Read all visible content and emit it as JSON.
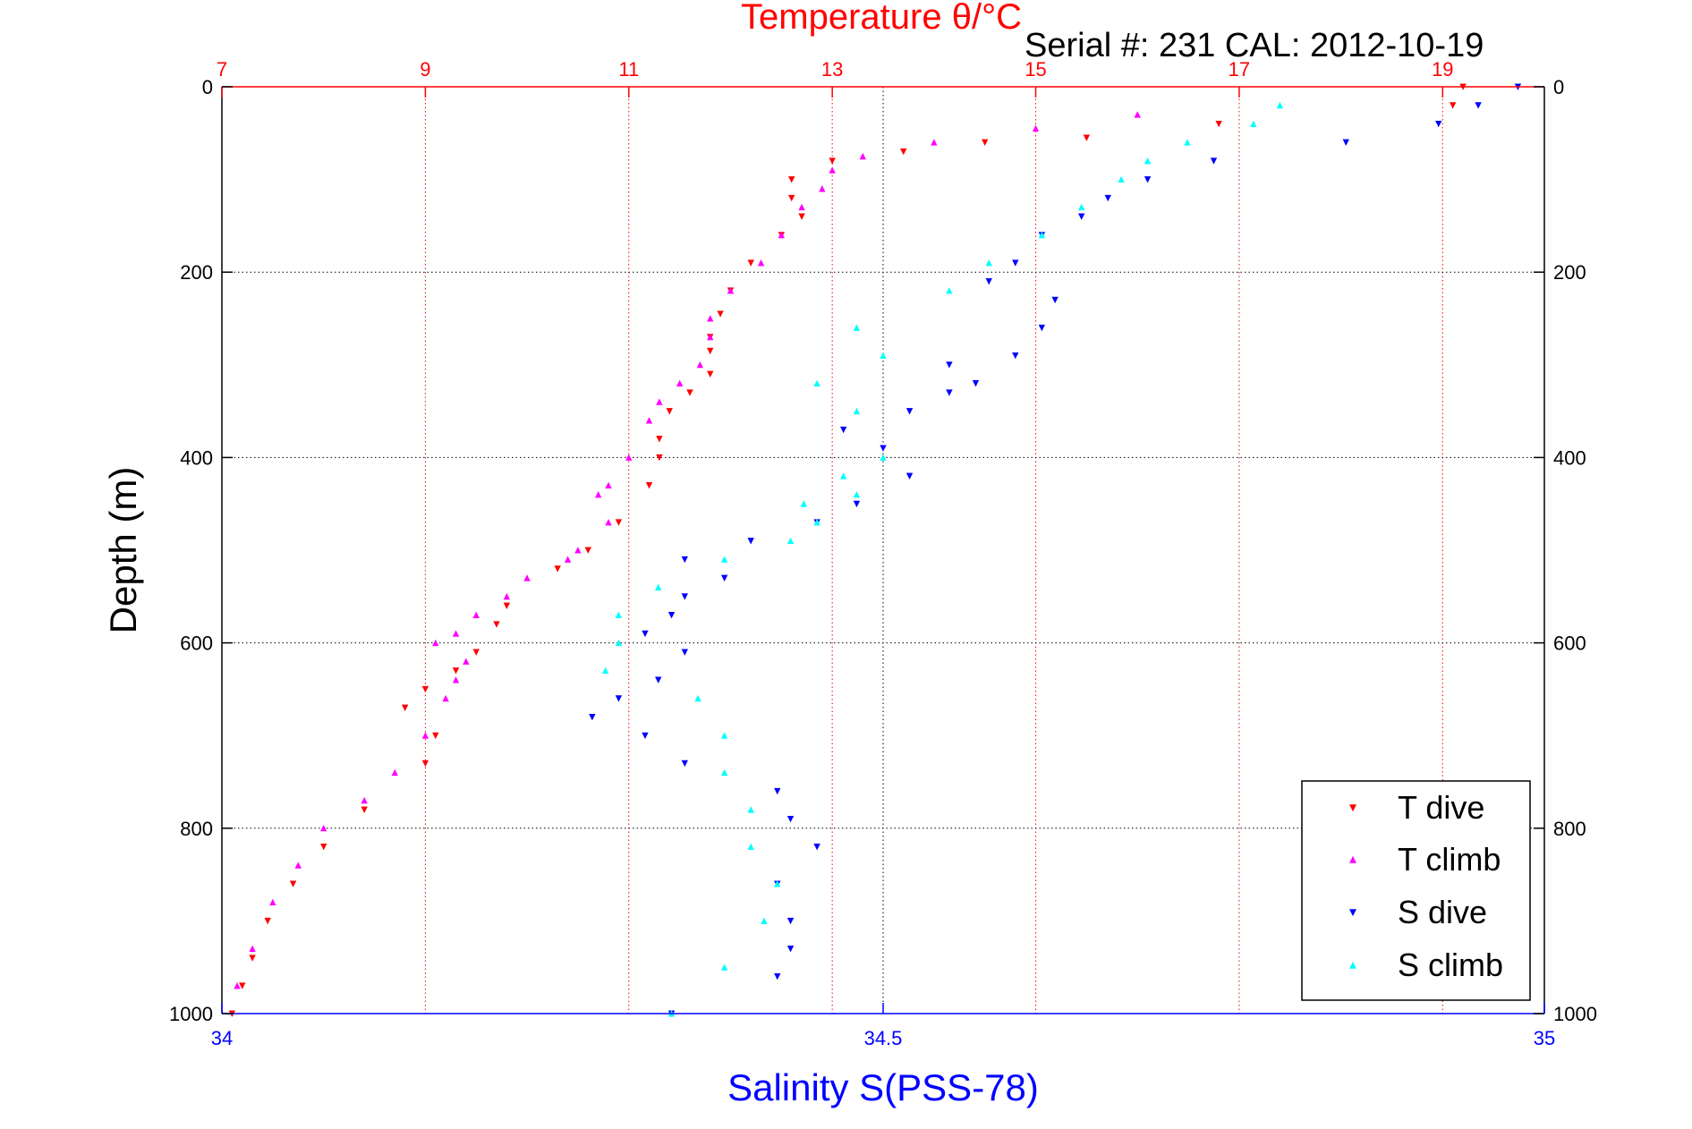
{
  "chart_data": {
    "type": "scatter",
    "title": "Temperature θ/°C",
    "subtitle": "Serial #: 231  CAL: 2012-10-19",
    "xlabel": "Salinity S(PSS-78)",
    "ylabel": "Depth (m)",
    "ylim": [
      0,
      1000
    ],
    "y_reversed": true,
    "x_top_axis": {
      "label": "Temperature θ/°C",
      "range": [
        7,
        20
      ],
      "ticks": [
        7,
        9,
        11,
        13,
        15,
        17,
        19
      ],
      "color": "#ff0000"
    },
    "x_bottom_axis": {
      "label": "Salinity S(PSS-78)",
      "range": [
        34,
        35
      ],
      "ticks": [
        34,
        34.5,
        35
      ],
      "tick_labels": [
        "34",
        "34.5",
        "35"
      ],
      "color": "#0000ff"
    },
    "y_ticks": [
      0,
      200,
      400,
      600,
      800,
      1000
    ],
    "grid": true,
    "legend_position": "bottom-right",
    "series": [
      {
        "name": "T dive",
        "axis": "top",
        "color": "#ff0000",
        "marker": "triangle-down",
        "x": [
          19.2,
          19.1,
          16.8,
          15.5,
          14.5,
          13.7,
          13.0,
          12.6,
          12.6,
          12.7,
          12.5,
          12.2,
          12.0,
          11.9,
          11.8,
          11.8,
          11.8,
          11.6,
          11.4,
          11.3,
          11.3,
          11.2,
          10.9,
          10.6,
          10.3,
          9.8,
          9.7,
          9.5,
          9.3,
          9.0,
          8.8,
          9.1,
          9.0,
          8.4,
          8.0,
          7.7,
          7.45,
          7.3,
          7.2,
          7.1
        ],
        "y": [
          0,
          20,
          40,
          55,
          60,
          70,
          80,
          100,
          120,
          140,
          160,
          190,
          220,
          245,
          270,
          285,
          310,
          330,
          350,
          380,
          400,
          430,
          470,
          500,
          520,
          560,
          580,
          610,
          630,
          650,
          670,
          700,
          730,
          780,
          820,
          860,
          900,
          940,
          970,
          1000
        ]
      },
      {
        "name": "T climb",
        "axis": "top",
        "color": "#ff00ff",
        "marker": "triangle-up",
        "x": [
          16.0,
          15.0,
          14.0,
          13.3,
          13.0,
          12.9,
          12.7,
          12.5,
          12.3,
          12.0,
          11.8,
          11.8,
          11.7,
          11.5,
          11.3,
          11.2,
          11.0,
          10.8,
          10.7,
          10.8,
          10.5,
          10.4,
          10.0,
          9.8,
          9.5,
          9.3,
          9.1,
          9.4,
          9.3,
          9.2,
          9.0,
          8.7,
          8.4,
          8.0,
          7.75,
          7.5,
          7.3,
          7.15
        ],
        "y": [
          30,
          45,
          60,
          75,
          90,
          110,
          130,
          160,
          190,
          220,
          250,
          270,
          300,
          320,
          340,
          360,
          400,
          430,
          440,
          470,
          500,
          510,
          530,
          550,
          570,
          590,
          600,
          620,
          640,
          660,
          700,
          740,
          770,
          800,
          840,
          880,
          930,
          970
        ]
      },
      {
        "name": "S dive",
        "axis": "bottom",
        "color": "#0000ff",
        "marker": "triangle-down",
        "x": [
          34.98,
          34.95,
          34.92,
          34.85,
          34.75,
          34.7,
          34.67,
          34.65,
          34.62,
          34.6,
          34.58,
          34.63,
          34.62,
          34.6,
          34.55,
          34.57,
          34.55,
          34.52,
          34.47,
          34.5,
          34.52,
          34.48,
          34.45,
          34.4,
          34.35,
          34.38,
          34.35,
          34.34,
          34.32,
          34.35,
          34.33,
          34.3,
          34.28,
          34.32,
          34.35,
          34.42,
          34.43,
          34.45,
          34.42,
          34.43,
          34.43,
          34.42,
          34.34
        ],
        "y": [
          0,
          20,
          40,
          60,
          80,
          100,
          120,
          140,
          160,
          190,
          210,
          230,
          260,
          290,
          300,
          320,
          330,
          350,
          370,
          390,
          420,
          450,
          470,
          490,
          510,
          530,
          550,
          570,
          590,
          610,
          640,
          660,
          680,
          700,
          730,
          760,
          790,
          820,
          860,
          900,
          930,
          960,
          1000
        ]
      },
      {
        "name": "S climb",
        "axis": "bottom",
        "color": "#00ffff",
        "marker": "triangle-up",
        "x": [
          34.8,
          34.78,
          34.73,
          34.7,
          34.68,
          34.65,
          34.62,
          34.58,
          34.55,
          34.48,
          34.5,
          34.45,
          34.48,
          34.5,
          34.47,
          34.48,
          34.44,
          34.45,
          34.43,
          34.38,
          34.33,
          34.3,
          34.3,
          34.29,
          34.36,
          34.38,
          34.38,
          34.4,
          34.4,
          34.42,
          34.41,
          34.38,
          34.34
        ],
        "y": [
          20,
          40,
          60,
          80,
          100,
          130,
          160,
          190,
          220,
          260,
          290,
          320,
          350,
          400,
          420,
          440,
          450,
          470,
          490,
          510,
          540,
          570,
          600,
          630,
          660,
          700,
          740,
          780,
          820,
          860,
          900,
          950,
          1000
        ]
      }
    ]
  }
}
